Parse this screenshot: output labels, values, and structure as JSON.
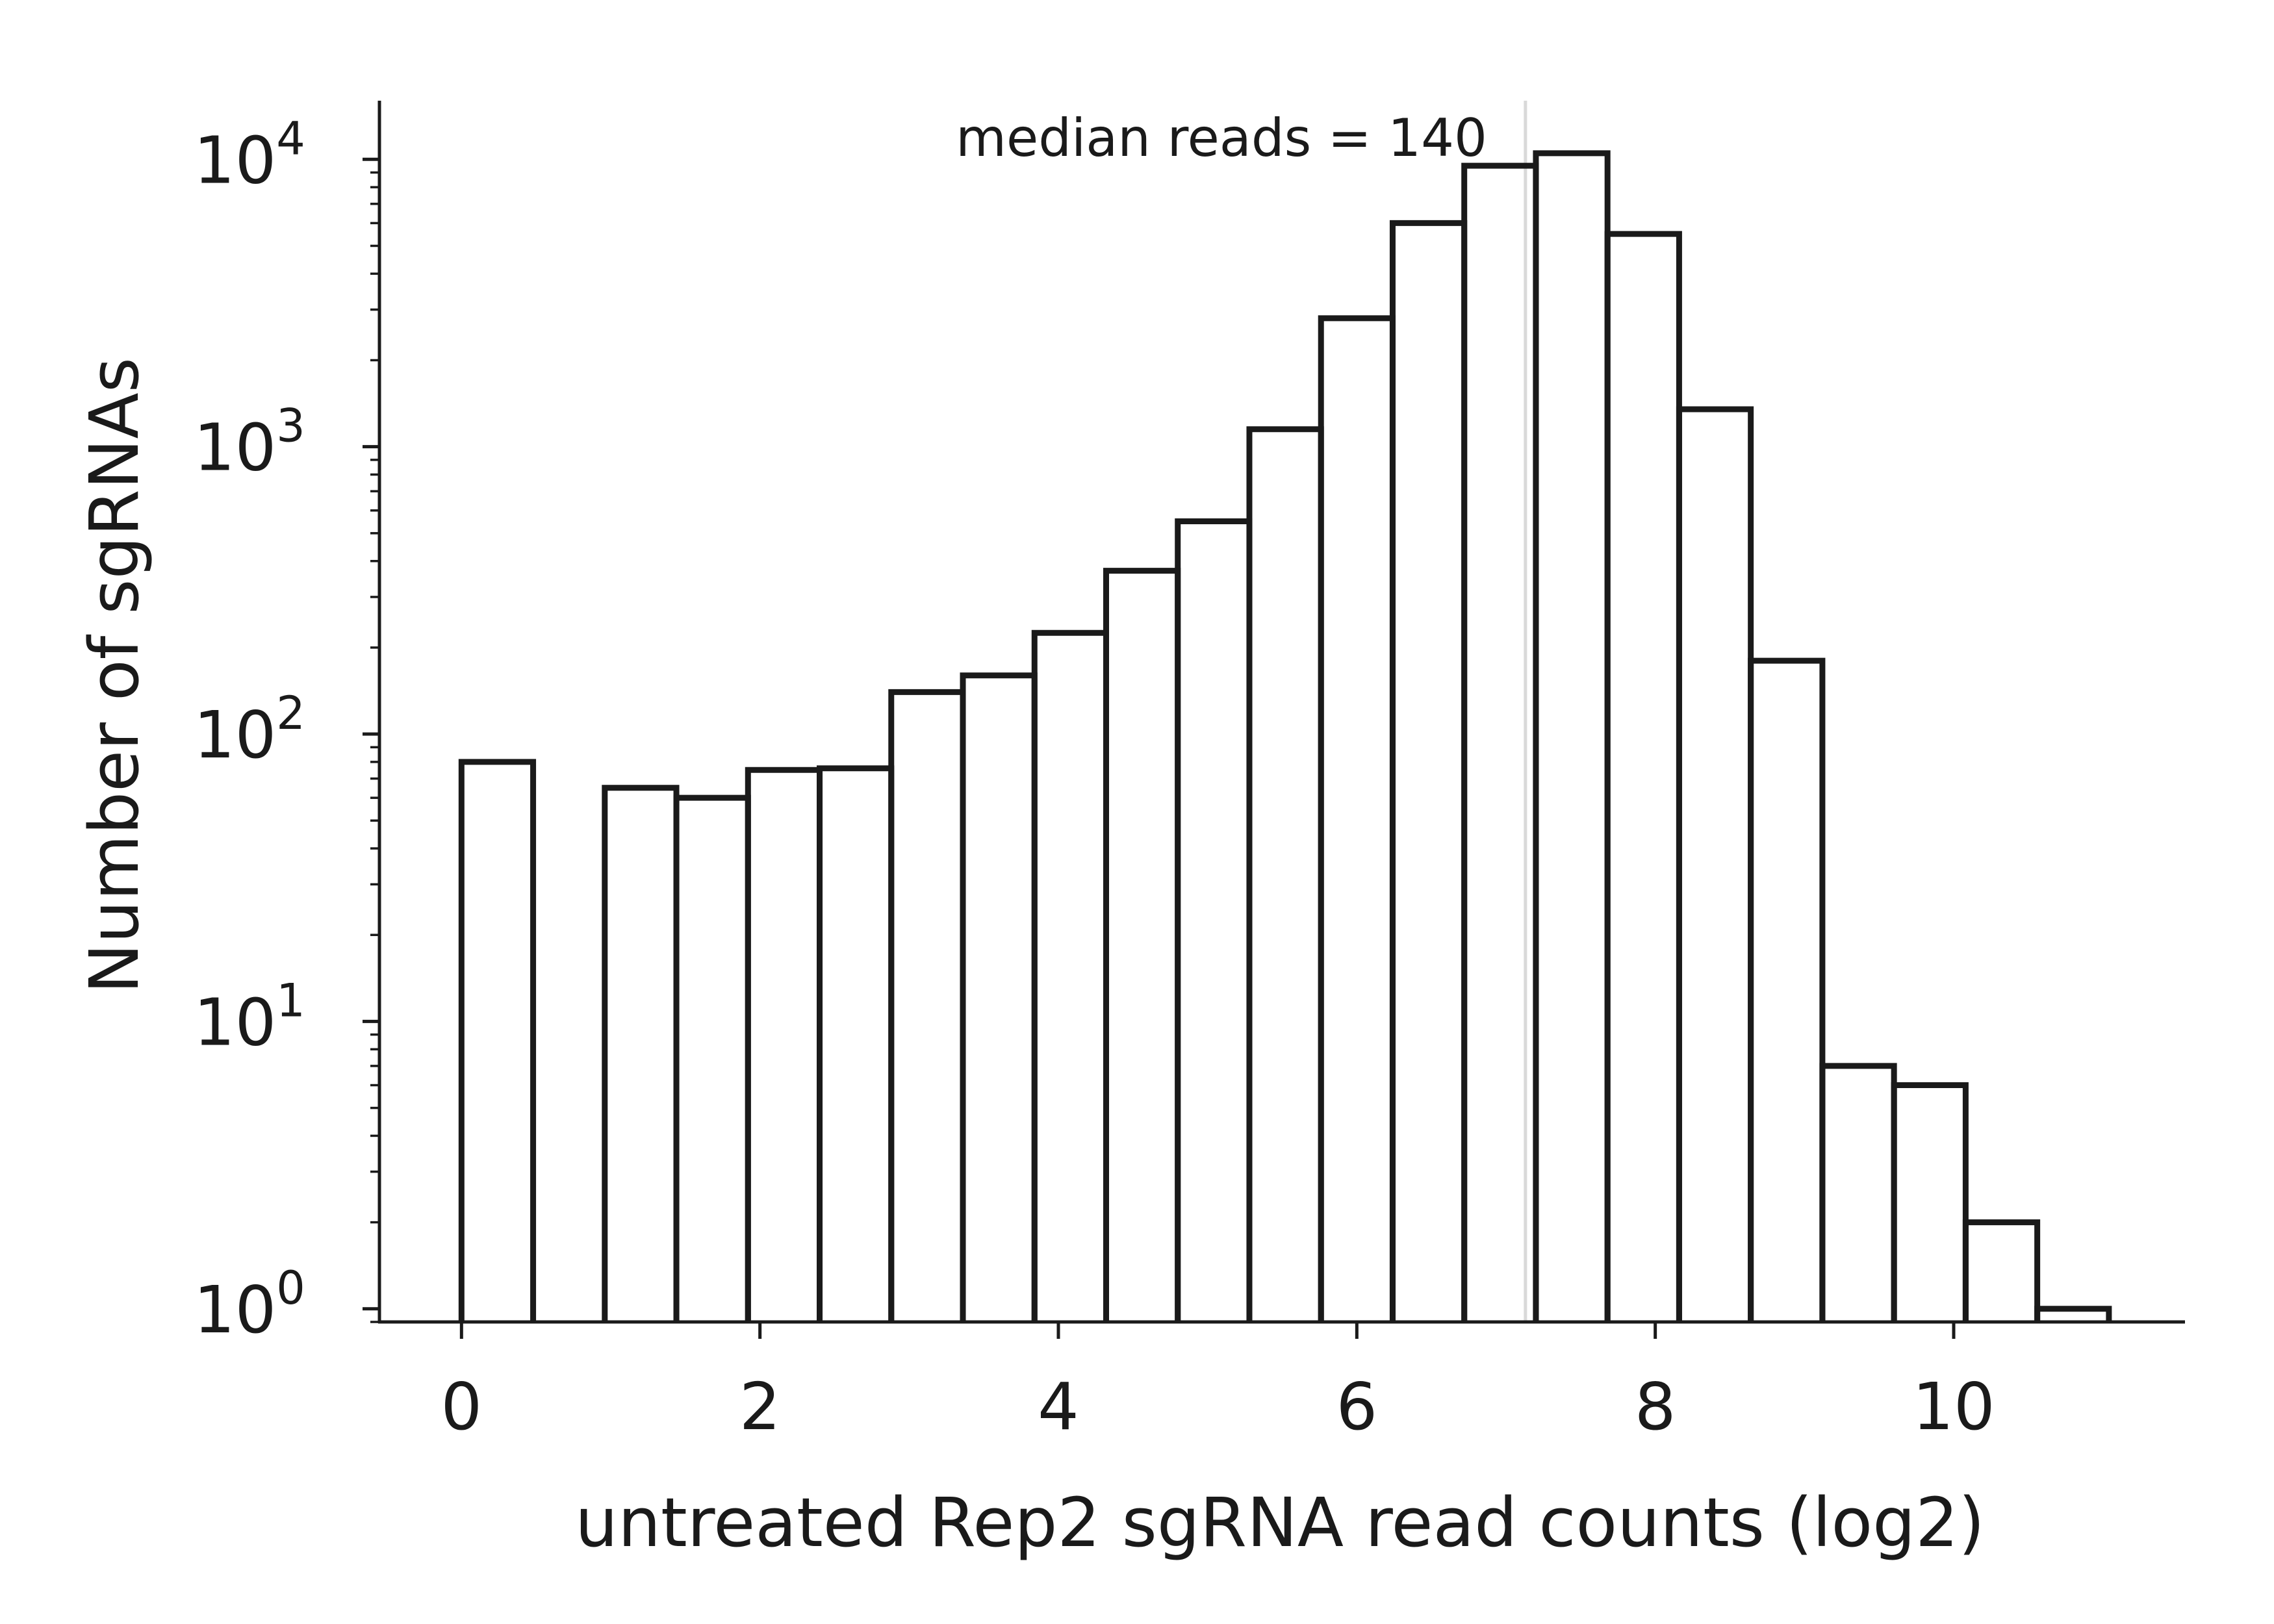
{
  "chart_data": {
    "type": "histogram",
    "xlabel": "untreated Rep2 sgRNA read counts (log2)",
    "ylabel": "Number of sgRNAs",
    "yscale": "log",
    "xlim": [
      -0.55,
      11.55
    ],
    "ylim": [
      0.9,
      16000
    ],
    "x_ticks": [
      0,
      2,
      4,
      6,
      8,
      10
    ],
    "y_tick_labels": [
      {
        "base": "10",
        "exp": "0",
        "value": 1
      },
      {
        "base": "10",
        "exp": "1",
        "value": 10
      },
      {
        "base": "10",
        "exp": "2",
        "value": 100
      },
      {
        "base": "10",
        "exp": "3",
        "value": 1000
      },
      {
        "base": "10",
        "exp": "4",
        "value": 10000
      }
    ],
    "bin_edges": [
      0,
      0.48,
      0.96,
      1.44,
      1.92,
      2.4,
      2.88,
      3.36,
      3.84,
      4.32,
      4.8,
      5.28,
      5.76,
      6.24,
      6.72,
      7.2,
      7.68,
      8.16,
      8.64,
      9.12,
      9.6,
      10.08,
      10.56,
      11.04
    ],
    "counts": [
      80,
      0,
      65,
      60,
      75,
      76,
      140,
      160,
      225,
      370,
      550,
      1150,
      2800,
      6000,
      9500,
      10500,
      5500,
      1350,
      180,
      7,
      6,
      2,
      1
    ],
    "median_line_x": 7.13,
    "annotation": "median reads = 140",
    "colors": {
      "hist_stroke": "#1a1a1a",
      "median_line": "#d9d9d9",
      "axes": "#1a1a1a"
    },
    "grid": false,
    "legend": "none"
  }
}
